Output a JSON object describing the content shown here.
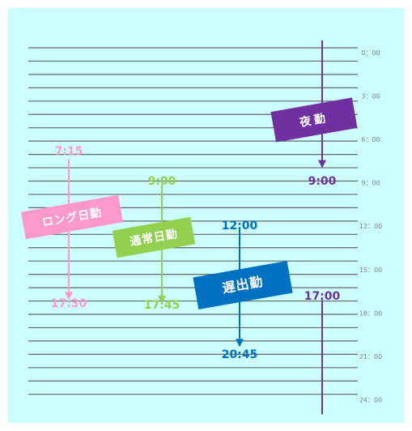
{
  "colors": {
    "background": "#ccffff",
    "grid_line": "#666666",
    "tick_label": "#7f7f7f",
    "long_day": "#ff99cc",
    "normal_day": "#92d050",
    "late_shift": "#0070c0",
    "night_shift": "#7030a0"
  },
  "hour_ticks": [
    {
      "hour": 0,
      "label": "0：00"
    },
    {
      "hour": 3,
      "label": "3：00"
    },
    {
      "hour": 6,
      "label": "6：00"
    },
    {
      "hour": 9,
      "label": "9：00"
    },
    {
      "hour": 12,
      "label": "12：00"
    },
    {
      "hour": 15,
      "label": "15：00"
    },
    {
      "hour": 18,
      "label": "18：00"
    },
    {
      "hour": 21,
      "label": "21：00"
    },
    {
      "hour": 24,
      "label": "24：00"
    }
  ],
  "shifts": [
    {
      "id": "long-day",
      "name": "ロング日勤",
      "start_hour": 7.25,
      "end_hour": 17.5,
      "start_label": "7:15",
      "end_label": "17:30",
      "color": "#ff99cc"
    },
    {
      "id": "normal-day",
      "name": "通常日勤",
      "start_hour": 9,
      "end_hour": 17.75,
      "start_label": "9:00",
      "end_label": "17:45",
      "color": "#92d050"
    },
    {
      "id": "late-shift",
      "name": "遅出勤",
      "start_hour": 12,
      "end_hour": 20.75,
      "start_label": "12:00",
      "end_label": "20:45",
      "color": "#0070c0"
    },
    {
      "id": "night-shift",
      "name": "夜勤",
      "start_hour": 17,
      "end_hour": 9,
      "start_label": "17:00",
      "end_label": "9:00",
      "color": "#7030a0"
    }
  ]
}
